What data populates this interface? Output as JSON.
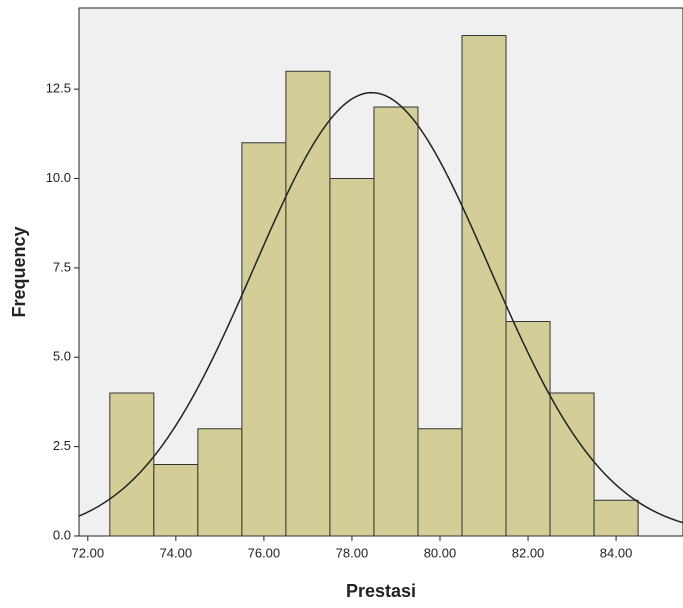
{
  "chart_data": {
    "type": "histogram",
    "x_label": "Prestasi",
    "y_label": "Frequency",
    "bins": [
      72.5,
      73.5,
      74.5,
      75.5,
      76.5,
      77.5,
      78.5,
      79.5,
      80.5,
      81.5,
      82.5,
      83.5,
      84.5
    ],
    "values": [
      4,
      2,
      3,
      11,
      13,
      10,
      12,
      3,
      14,
      6,
      4,
      1
    ],
    "color": "#d3ce97",
    "normal_curve": {
      "mean": 78.45,
      "std": 2.67
    },
    "xlim": [
      71.8,
      85.52
    ],
    "ylim": [
      0,
      14.77
    ],
    "xticks": [
      {
        "value": 72,
        "label": "72.00"
      },
      {
        "value": 74,
        "label": "74.00"
      },
      {
        "value": 76,
        "label": "76.00"
      },
      {
        "value": 78,
        "label": "78.00"
      },
      {
        "value": 80,
        "label": "80.00"
      },
      {
        "value": 82,
        "label": "82.00"
      },
      {
        "value": 84,
        "label": "84.00"
      }
    ],
    "yticks": [
      {
        "value": 0,
        "label": "0.0"
      },
      2.5,
      {
        "value": 5,
        "label": "5.0"
      },
      7.5,
      {
        "value": 10,
        "label": "10.0"
      },
      12.5
    ]
  }
}
